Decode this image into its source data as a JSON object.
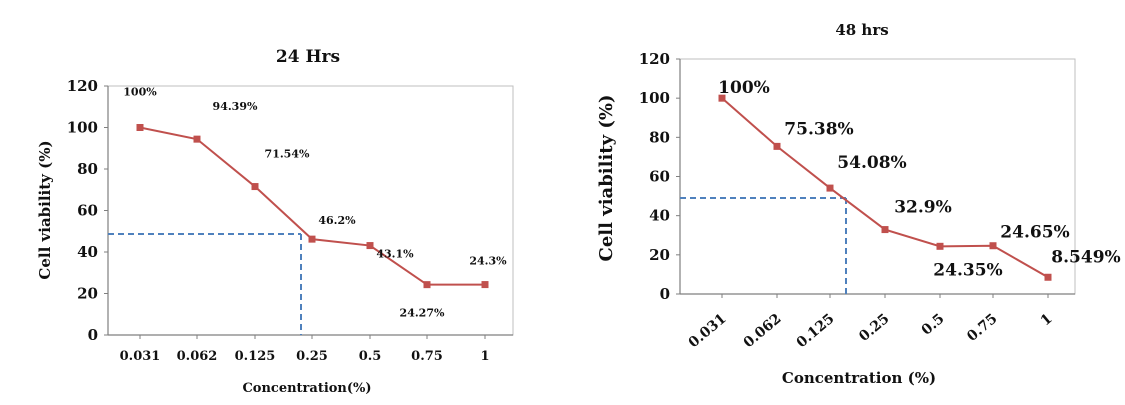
{
  "chart_data": [
    {
      "type": "line",
      "title": "24 Hrs",
      "xlabel": "Concentration(%)",
      "ylabel": "Cell viability (%)",
      "categories": [
        "0.031",
        "0.062",
        "0.125",
        "0.25",
        "0.5",
        "0.75",
        "1"
      ],
      "ylim": [
        0,
        120
      ],
      "yticks": [
        0,
        20,
        40,
        60,
        80,
        100,
        120
      ],
      "series": [
        {
          "values": [
            100,
            94.39,
            71.54,
            46.2,
            43.1,
            24.27,
            24.3
          ],
          "color": "#c0504d"
        }
      ],
      "data_labels": [
        "100%",
        "94.39%",
        "71.54%",
        "46.2%",
        "43.1%",
        "24.27%",
        "24.3%"
      ],
      "ic50_guide": {
        "y": 50,
        "x_category_position": 3,
        "color": "#4f81bd"
      }
    },
    {
      "type": "line",
      "title": "48 hrs",
      "xlabel": "Concentration (%)",
      "ylabel": "Cell viability (%)",
      "categories": [
        "0.031",
        "0.062",
        "0.125",
        "0.25",
        "0.5",
        "0.75",
        "1"
      ],
      "ylim": [
        0,
        120
      ],
      "yticks": [
        0,
        20,
        40,
        60,
        80,
        100,
        120
      ],
      "series": [
        {
          "values": [
            100,
            75.38,
            54.08,
            32.9,
            24.35,
            24.65,
            8.549
          ],
          "color": "#c0504d"
        }
      ],
      "data_labels": [
        "100%",
        "75.38%",
        "54.08%",
        "32.9%",
        "24.35%",
        "24.65%",
        "8.549%"
      ],
      "ic50_guide": {
        "y": 48,
        "x_category_position": 2.5,
        "color": "#4f81bd"
      }
    }
  ]
}
